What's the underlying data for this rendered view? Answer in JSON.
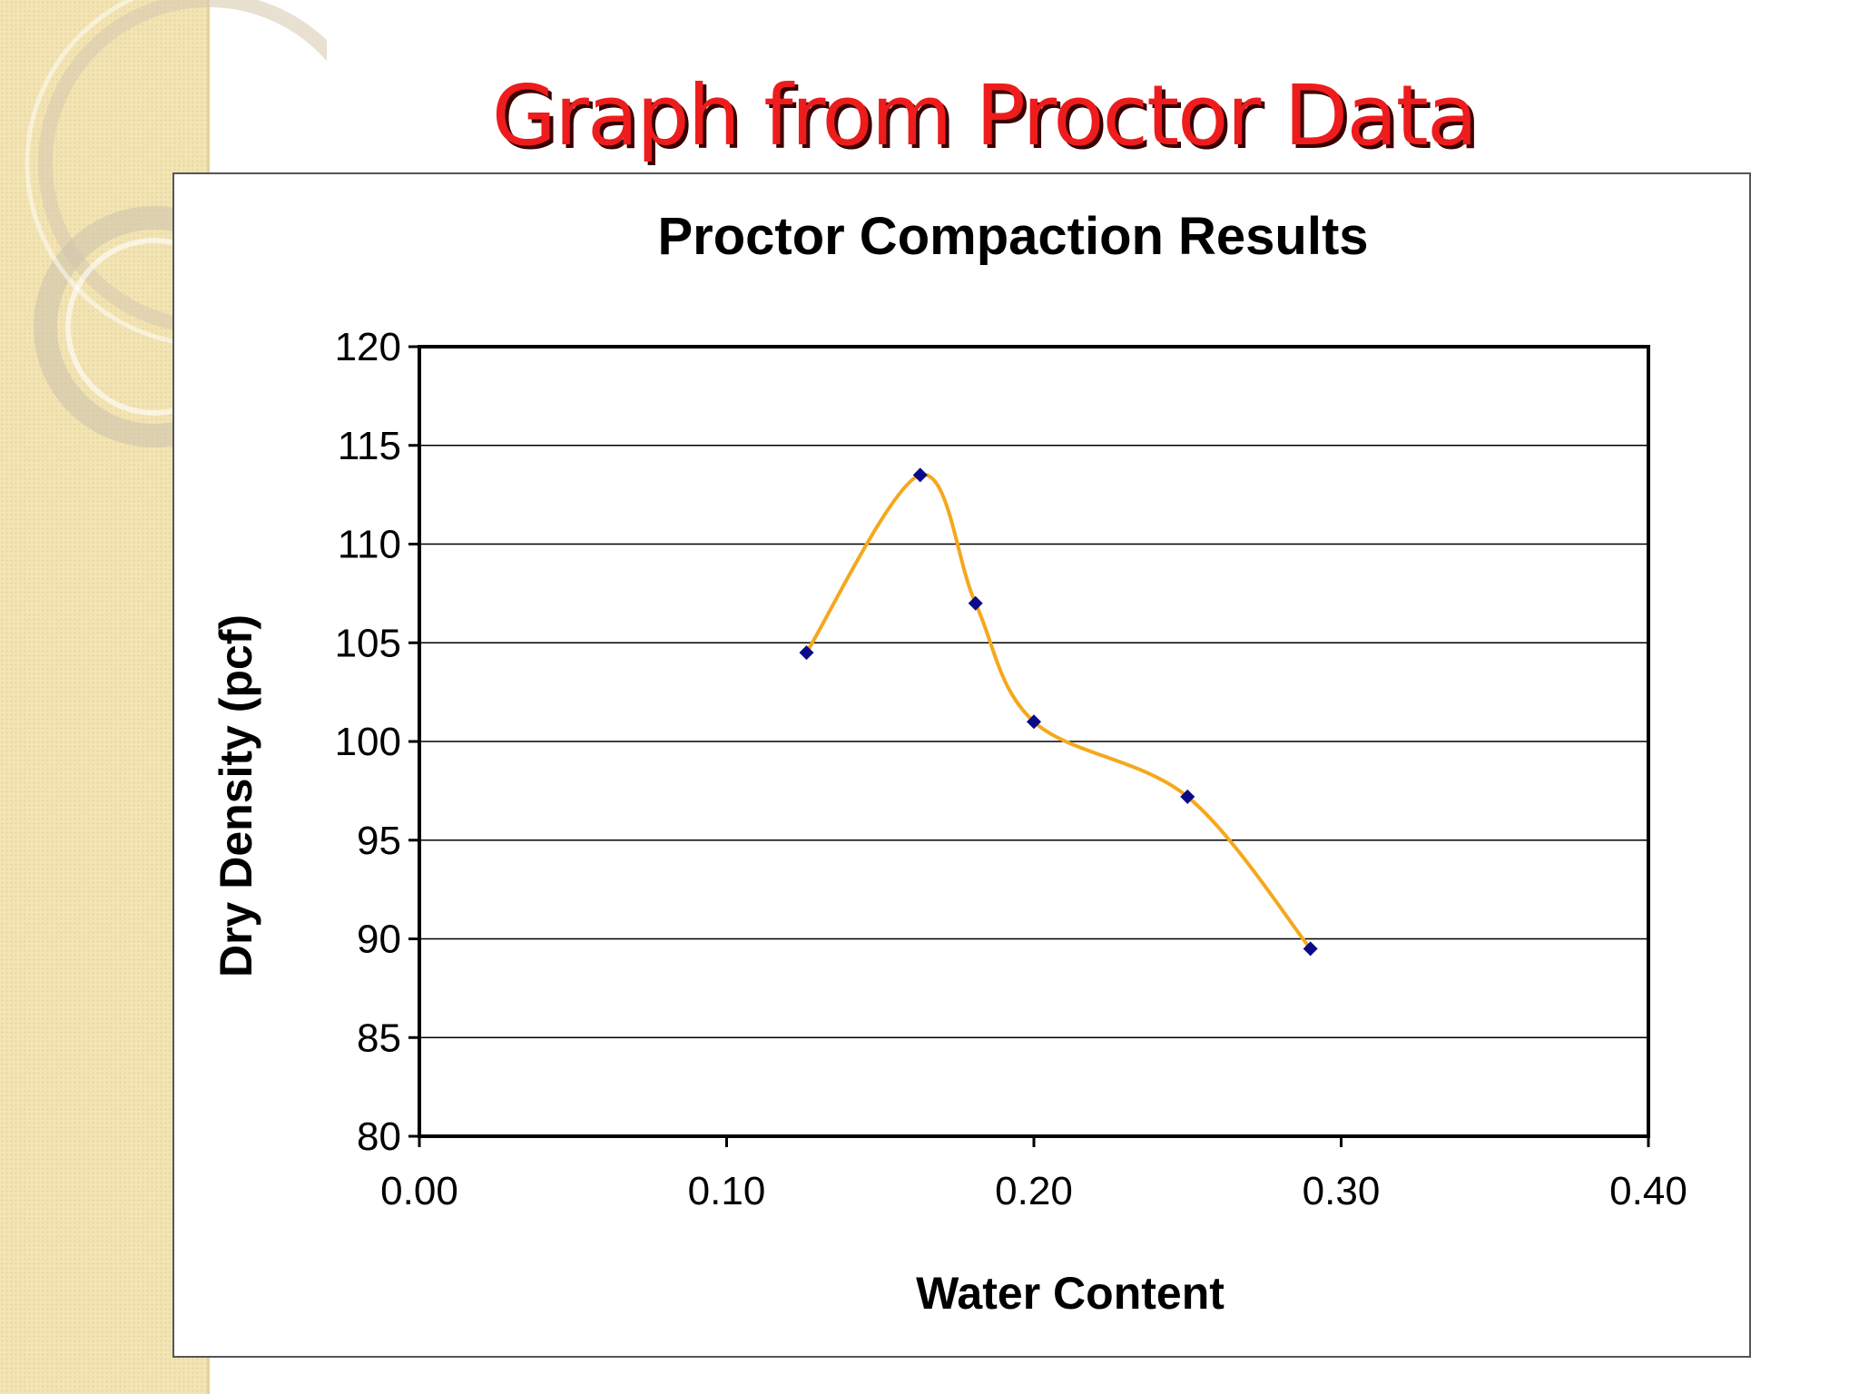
{
  "slide": {
    "title": "Graph from Proctor Data"
  },
  "colors": {
    "title": "#ee1c1c",
    "line": "#f5a81c",
    "marker": "#0a0a8a",
    "sidebar": "#f3e4b4"
  },
  "chart_data": {
    "type": "scatter",
    "title": "Proctor Compaction Results",
    "xlabel": "Water Content",
    "ylabel": "Dry Density (pcf)",
    "xlim": [
      0,
      0.4
    ],
    "ylim": [
      80,
      120
    ],
    "x_ticks": [
      "0.00",
      "0.10",
      "0.20",
      "0.30",
      "0.40"
    ],
    "y_ticks": [
      "80",
      "85",
      "90",
      "95",
      "100",
      "105",
      "110",
      "115",
      "120"
    ],
    "grid": "horizontal",
    "line": "smoothed",
    "series": [
      {
        "x": [
          0.126,
          0.163,
          0.181,
          0.2,
          0.25,
          0.29
        ],
        "y": [
          104.5,
          113.5,
          107,
          101,
          97.2,
          89.5
        ]
      }
    ]
  }
}
